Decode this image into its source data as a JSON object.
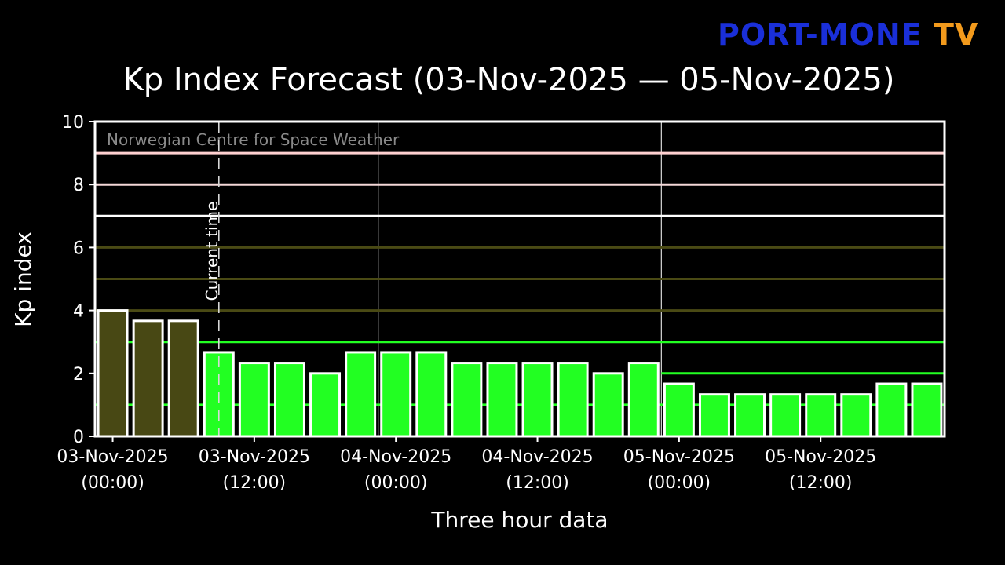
{
  "logo": {
    "part1": "PORT-MONE",
    "part2": "TV",
    "colors": {
      "part1": "#1a2fd8",
      "part2": "#f29a1c"
    }
  },
  "chart_data": {
    "type": "bar",
    "title": "Kp Index Forecast (03-Nov-2025 — 05-Nov-2025)",
    "xlabel": "Three hour data",
    "ylabel": "Kp index",
    "ylim": [
      0,
      10
    ],
    "yticks": [
      0,
      2,
      4,
      6,
      8,
      10
    ],
    "watermark": "Norwegian Centre for Space Weather",
    "current_time_label": "Current time",
    "current_time_slot": 3.5,
    "slots": 24,
    "values": [
      4.0,
      3.67,
      3.67,
      2.67,
      2.33,
      2.33,
      2.0,
      2.67,
      2.67,
      2.67,
      2.33,
      2.33,
      2.33,
      2.33,
      2.0,
      2.33,
      1.67,
      1.33,
      1.33,
      1.33,
      1.33,
      1.33,
      1.67,
      1.67
    ],
    "past_count": 3,
    "colors": {
      "past": "#484814",
      "forecast": "#22ff22",
      "bar_edge": "#ffffff"
    },
    "xtick_labels": [
      {
        "slot": 0,
        "date": "03-Nov-2025",
        "time": "(00:00)"
      },
      {
        "slot": 4,
        "date": "03-Nov-2025",
        "time": "(12:00)"
      },
      {
        "slot": 8,
        "date": "04-Nov-2025",
        "time": "(00:00)"
      },
      {
        "slot": 12,
        "date": "04-Nov-2025",
        "time": "(12:00)"
      },
      {
        "slot": 16,
        "date": "05-Nov-2025",
        "time": "(00:00)"
      },
      {
        "slot": 20,
        "date": "05-Nov-2025",
        "time": "(12:00)"
      }
    ],
    "day_boundaries": [
      8,
      16
    ],
    "threshold_lines": [
      {
        "kp": 1,
        "color": "#22ff22",
        "from_slot": 0,
        "to_slot": 24
      },
      {
        "kp": 2,
        "color": "#22ff22",
        "from_slot": 16,
        "to_slot": 24
      },
      {
        "kp": 3,
        "color": "#22ff22",
        "from_slot": 0,
        "to_slot": 24
      },
      {
        "kp": 4,
        "color": "#4a4a14",
        "from_slot": 0,
        "to_slot": 24
      },
      {
        "kp": 5,
        "color": "#4a4a14",
        "from_slot": 0,
        "to_slot": 24
      },
      {
        "kp": 6,
        "color": "#4a4a14",
        "from_slot": 0,
        "to_slot": 24
      },
      {
        "kp": 7,
        "color": "#ffffff",
        "from_slot": 0,
        "to_slot": 24
      },
      {
        "kp": 8,
        "color": "#f4d8d8",
        "from_slot": 0,
        "to_slot": 24
      },
      {
        "kp": 9,
        "color": "#ffd0d0",
        "from_slot": 0,
        "to_slot": 24
      }
    ],
    "grid": false
  }
}
